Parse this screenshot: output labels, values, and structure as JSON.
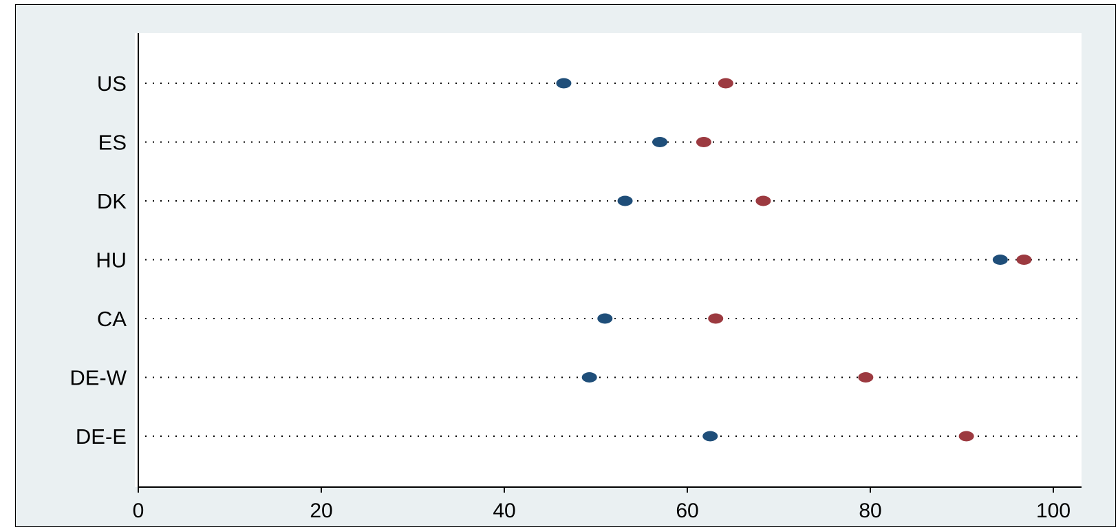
{
  "chart_data": {
    "type": "scatter",
    "orientation": "horizontal-dot-plot",
    "title": "",
    "xlabel": "",
    "ylabel": "",
    "categories": [
      "US",
      "ES",
      "DK",
      "HU",
      "CA",
      "DE-W",
      "DE-E"
    ],
    "series": [
      {
        "color": "#1f4e79",
        "values": [
          46.5,
          57,
          53.2,
          94.2,
          51,
          49.3,
          62.5
        ]
      },
      {
        "color": "#9c3a40",
        "values": [
          64.2,
          61.8,
          68.3,
          96.8,
          63.1,
          79.5,
          90.5
        ]
      }
    ],
    "xlim": [
      0,
      103
    ],
    "xticks": [
      0,
      20,
      40,
      60,
      80,
      100
    ],
    "xtick_labels": [
      "0",
      "20",
      "40",
      "60",
      "80",
      "100"
    ],
    "grid": "dotted horizontal guide lines per category",
    "legend": "none",
    "plot_background": "#ffffff",
    "outer_background": "#eaf0f2"
  }
}
